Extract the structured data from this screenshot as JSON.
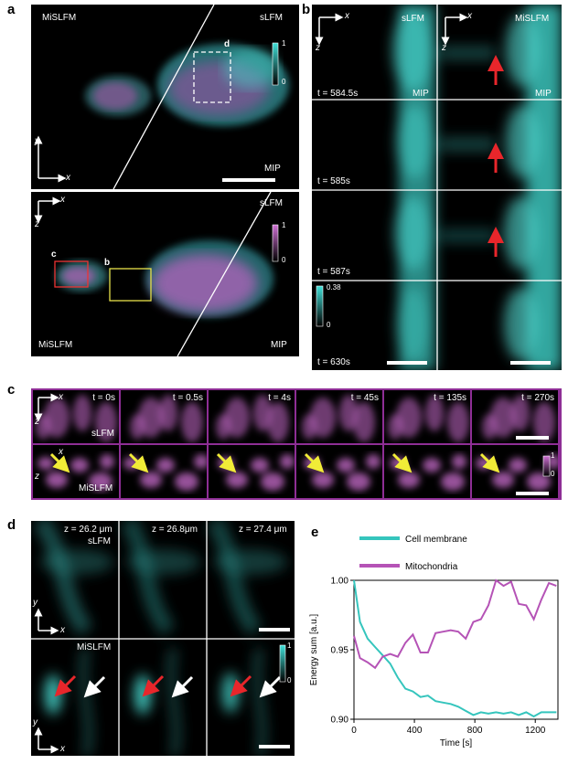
{
  "panels": {
    "a": "a",
    "b": "b",
    "c": "c",
    "d": "d",
    "e": "e"
  },
  "a_top": {
    "left": "MiSLFM",
    "right": "sLFM",
    "roi": "d",
    "cbar_max": "1",
    "cbar_min": "0",
    "mip": "MIP",
    "axis_x": "x",
    "axis_y": "y"
  },
  "a_bot": {
    "right": "sLFM",
    "roi_c": "c",
    "roi_b": "b",
    "cbar_max": "1",
    "cbar_min": "0",
    "left_bottom": "MiSLFM",
    "mip": "MIP",
    "axis_x": "x",
    "axis_z": "z"
  },
  "b": {
    "col_left": "sLFM",
    "col_right": "MiSLFM",
    "mip": "MIP",
    "axis_x": "x",
    "axis_z": "z",
    "times": [
      "t = 584.5s",
      "t = 585s",
      "t = 587s",
      "t = 630s"
    ],
    "cbar_max": "0.38",
    "cbar_min": "0"
  },
  "c": {
    "times": [
      "t = 0s",
      "t = 0.5s",
      "t = 4s",
      "t = 45s",
      "t = 135s",
      "t = 270s"
    ],
    "row1": "sLFM",
    "row2": "MiSLFM",
    "axis_x": "x",
    "axis_z": "z",
    "cbar_max": "1",
    "cbar_min": "0"
  },
  "d": {
    "z": [
      "z = 26.2 μm",
      "z = 26.8μm",
      "z = 27.4 μm"
    ],
    "row1": "sLFM",
    "row2": "MiSLFM",
    "axis_x": "x",
    "axis_y": "y",
    "cbar_max": "1",
    "cbar_min": "0"
  },
  "e": {
    "colors": {
      "membrane": "#35c5bd",
      "mito": "#b553b6"
    },
    "chart_data": {
      "type": "line",
      "xlabel": "Time [s]",
      "ylabel": "Energy sum [a.u.]",
      "xlim": [
        0,
        1350
      ],
      "ylim": [
        0.9,
        1.0
      ],
      "xticks": [
        "0",
        "400",
        "800",
        "1200"
      ],
      "yticks": [
        "0.90",
        "0.95",
        "1.00"
      ],
      "series": [
        {
          "name": "Cell membrane",
          "x": [
            0,
            40,
            90,
            140,
            190,
            240,
            290,
            340,
            390,
            440,
            490,
            540,
            590,
            640,
            690,
            740,
            790,
            840,
            890,
            940,
            990,
            1040,
            1090,
            1140,
            1190,
            1240,
            1290,
            1340
          ],
          "values": [
            1.0,
            0.97,
            0.958,
            0.952,
            0.946,
            0.94,
            0.93,
            0.922,
            0.92,
            0.916,
            0.917,
            0.913,
            0.912,
            0.911,
            0.909,
            0.906,
            0.903,
            0.905,
            0.904,
            0.905,
            0.904,
            0.905,
            0.903,
            0.905,
            0.902,
            0.905,
            0.905,
            0.905
          ]
        },
        {
          "name": "Mitochondria",
          "x": [
            0,
            40,
            90,
            140,
            190,
            240,
            290,
            340,
            390,
            440,
            490,
            540,
            590,
            640,
            690,
            740,
            790,
            840,
            890,
            940,
            990,
            1040,
            1090,
            1140,
            1190,
            1240,
            1290,
            1340
          ],
          "values": [
            0.96,
            0.944,
            0.941,
            0.937,
            0.945,
            0.947,
            0.945,
            0.955,
            0.961,
            0.948,
            0.948,
            0.962,
            0.963,
            0.964,
            0.963,
            0.958,
            0.97,
            0.972,
            0.982,
            1.0,
            0.996,
            0.999,
            0.983,
            0.982,
            0.972,
            0.986,
            0.998,
            0.996
          ]
        }
      ]
    }
  }
}
